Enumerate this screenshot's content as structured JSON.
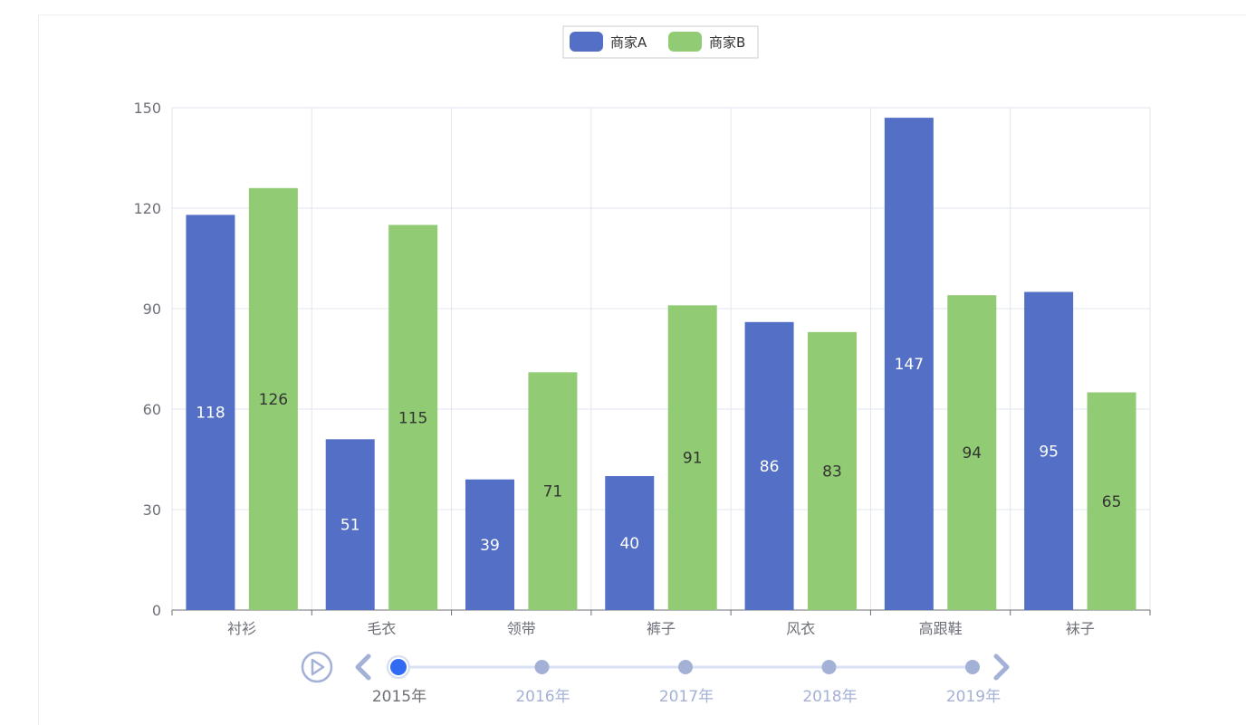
{
  "chart_data": {
    "type": "bar",
    "categories": [
      "衬衫",
      "毛衣",
      "领带",
      "裤子",
      "风衣",
      "高跟鞋",
      "袜子"
    ],
    "series": [
      {
        "name": "商家A",
        "color": "#5470c6",
        "label_color": "#ffffff",
        "values": [
          118,
          51,
          39,
          40,
          86,
          147,
          95
        ]
      },
      {
        "name": "商家B",
        "color": "#91cc75",
        "label_color": "#333333",
        "values": [
          126,
          115,
          71,
          91,
          83,
          94,
          65
        ]
      }
    ],
    "ylim": [
      0,
      150
    ],
    "yticks": [
      0,
      30,
      60,
      90,
      120,
      150
    ],
    "grid": true,
    "legend_position": "top-center",
    "data_labels": true
  },
  "timeline": {
    "items": [
      "2015年",
      "2016年",
      "2017年",
      "2018年",
      "2019年"
    ],
    "current_index": 0,
    "play_icon": "play-icon",
    "prev_icon": "chevron-left-icon",
    "next_icon": "chevron-right-icon",
    "active_color": "#316bf3",
    "inactive_color": "#a4b1d7",
    "line_color": "#dae1f5"
  }
}
